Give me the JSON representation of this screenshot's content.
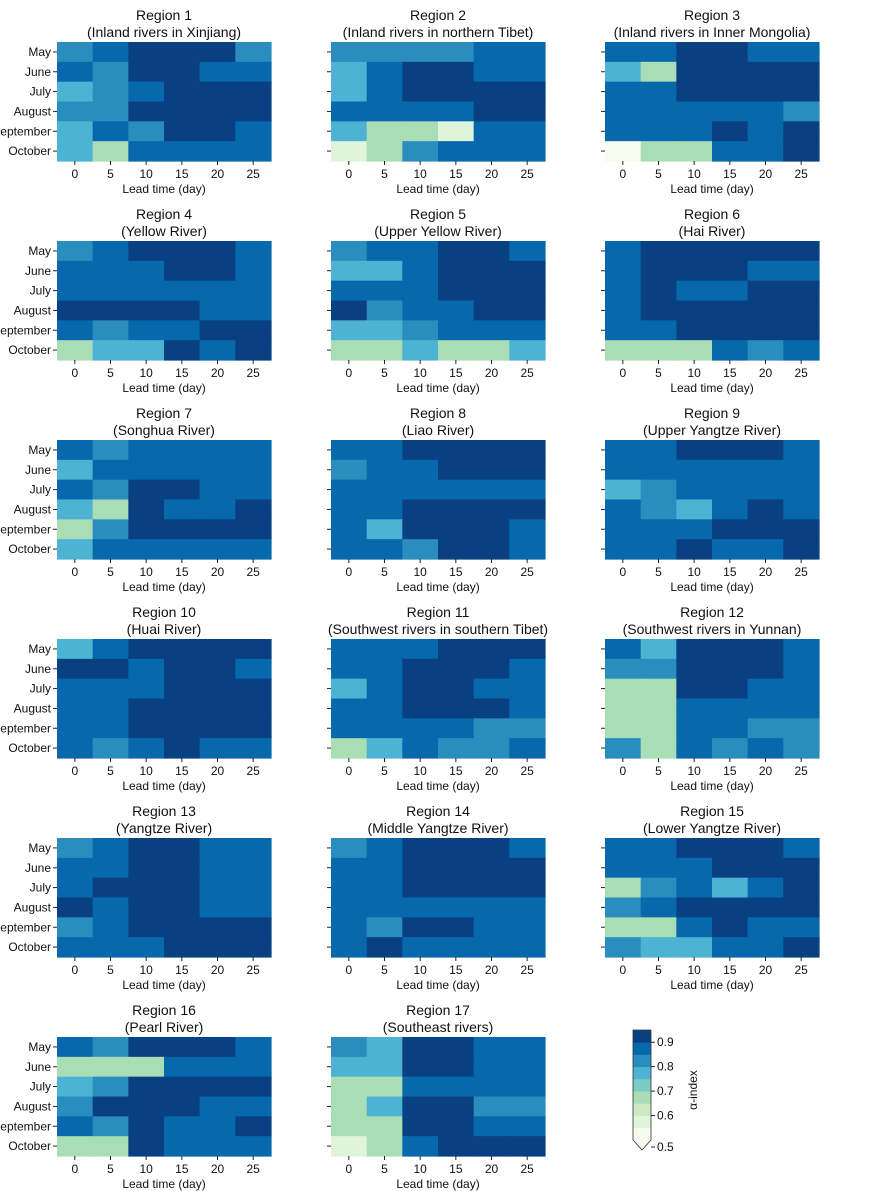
{
  "figure": {
    "colorbar": {
      "label": "α-index",
      "ticks": [
        0.5,
        0.6,
        0.7,
        0.8,
        0.9
      ],
      "range": [
        0.5,
        0.95
      ],
      "extend": "min",
      "colors": [
        "#f7fcf0",
        "#e0f3db",
        "#ccebc5",
        "#a8ddb5",
        "#7bccc4",
        "#4eb3d3",
        "#2b8cbe",
        "#0868ac",
        "#084081"
      ]
    }
  },
  "chart_data": {
    "type": "heatmap",
    "months": [
      "May",
      "June",
      "July",
      "August",
      "September",
      "October"
    ],
    "lead_times": [
      0,
      5,
      10,
      15,
      20,
      25
    ],
    "xlabel": "Lead time (day)",
    "panels": [
      {
        "title": "Region 1",
        "subtitle": "(Inland rivers in Xinjiang)",
        "values": [
          [
            0.8,
            0.85,
            0.9,
            0.93,
            0.93,
            0.8
          ],
          [
            0.88,
            0.8,
            0.93,
            0.93,
            0.88,
            0.85
          ],
          [
            0.75,
            0.8,
            0.85,
            0.93,
            0.93,
            0.93
          ],
          [
            0.8,
            0.8,
            0.93,
            0.93,
            0.93,
            0.93
          ],
          [
            0.75,
            0.85,
            0.8,
            0.93,
            0.93,
            0.88
          ],
          [
            0.75,
            0.65,
            0.85,
            0.88,
            0.85,
            0.85
          ]
        ]
      },
      {
        "title": "Region 2",
        "subtitle": "(Inland rivers in northern Tibet)",
        "values": [
          [
            0.8,
            0.8,
            0.8,
            0.8,
            0.88,
            0.85
          ],
          [
            0.75,
            0.88,
            0.93,
            0.93,
            0.85,
            0.85
          ],
          [
            0.75,
            0.88,
            0.93,
            0.93,
            0.93,
            0.93
          ],
          [
            0.85,
            0.88,
            0.88,
            0.88,
            0.93,
            0.93
          ],
          [
            0.75,
            0.7,
            0.65,
            0.6,
            0.85,
            0.85
          ],
          [
            0.6,
            0.7,
            0.8,
            0.85,
            0.85,
            0.85
          ]
        ]
      },
      {
        "title": "Region 3",
        "subtitle": "(Inland rivers in Inner Mongolia)",
        "values": [
          [
            0.85,
            0.85,
            0.93,
            0.93,
            0.88,
            0.88
          ],
          [
            0.75,
            0.7,
            0.93,
            0.93,
            0.93,
            0.93
          ],
          [
            0.85,
            0.85,
            0.93,
            0.93,
            0.93,
            0.93
          ],
          [
            0.85,
            0.85,
            0.85,
            0.88,
            0.85,
            0.8
          ],
          [
            0.85,
            0.85,
            0.85,
            0.93,
            0.88,
            0.93
          ],
          [
            0.5,
            0.7,
            0.7,
            0.85,
            0.88,
            0.93
          ]
        ]
      },
      {
        "title": "Region 4",
        "subtitle": "(Yellow River)",
        "values": [
          [
            0.8,
            0.85,
            0.93,
            0.93,
            0.93,
            0.88
          ],
          [
            0.88,
            0.88,
            0.88,
            0.93,
            0.93,
            0.85
          ],
          [
            0.88,
            0.88,
            0.85,
            0.88,
            0.88,
            0.88
          ],
          [
            0.93,
            0.93,
            0.93,
            0.93,
            0.88,
            0.85
          ],
          [
            0.85,
            0.8,
            0.85,
            0.88,
            0.93,
            0.93
          ],
          [
            0.65,
            0.75,
            0.75,
            0.93,
            0.88,
            0.93
          ]
        ]
      },
      {
        "title": "Region 5",
        "subtitle": "(Upper Yellow River)",
        "values": [
          [
            0.8,
            0.85,
            0.88,
            0.93,
            0.93,
            0.88
          ],
          [
            0.75,
            0.75,
            0.88,
            0.93,
            0.93,
            0.93
          ],
          [
            0.85,
            0.88,
            0.85,
            0.93,
            0.93,
            0.93
          ],
          [
            0.93,
            0.8,
            0.85,
            0.88,
            0.93,
            0.93
          ],
          [
            0.75,
            0.75,
            0.8,
            0.88,
            0.88,
            0.88
          ],
          [
            0.65,
            0.7,
            0.75,
            0.7,
            0.7,
            0.75
          ]
        ]
      },
      {
        "title": "Region 6",
        "subtitle": "(Hai River)",
        "values": [
          [
            0.85,
            0.93,
            0.93,
            0.93,
            0.93,
            0.93
          ],
          [
            0.88,
            0.93,
            0.93,
            0.93,
            0.88,
            0.88
          ],
          [
            0.85,
            0.93,
            0.88,
            0.88,
            0.93,
            0.93
          ],
          [
            0.88,
            0.93,
            0.93,
            0.93,
            0.93,
            0.93
          ],
          [
            0.88,
            0.88,
            0.93,
            0.93,
            0.93,
            0.93
          ],
          [
            0.7,
            0.7,
            0.7,
            0.85,
            0.8,
            0.88
          ]
        ]
      },
      {
        "title": "Region 7",
        "subtitle": "(Songhua River)",
        "values": [
          [
            0.88,
            0.8,
            0.85,
            0.85,
            0.85,
            0.88
          ],
          [
            0.75,
            0.88,
            0.88,
            0.88,
            0.88,
            0.88
          ],
          [
            0.85,
            0.8,
            0.93,
            0.93,
            0.88,
            0.88
          ],
          [
            0.75,
            0.7,
            0.93,
            0.88,
            0.88,
            0.93
          ],
          [
            0.7,
            0.8,
            0.93,
            0.93,
            0.93,
            0.93
          ],
          [
            0.75,
            0.85,
            0.88,
            0.88,
            0.85,
            0.88
          ]
        ]
      },
      {
        "title": "Region 8",
        "subtitle": "(Liao River)",
        "values": [
          [
            0.88,
            0.85,
            0.93,
            0.93,
            0.93,
            0.93
          ],
          [
            0.8,
            0.88,
            0.88,
            0.93,
            0.93,
            0.93
          ],
          [
            0.85,
            0.88,
            0.88,
            0.85,
            0.88,
            0.88
          ],
          [
            0.85,
            0.85,
            0.93,
            0.93,
            0.93,
            0.93
          ],
          [
            0.85,
            0.75,
            0.93,
            0.93,
            0.93,
            0.85
          ],
          [
            0.85,
            0.85,
            0.8,
            0.93,
            0.93,
            0.88
          ]
        ]
      },
      {
        "title": "Region 9",
        "subtitle": "(Upper Yangtze River)",
        "values": [
          [
            0.85,
            0.85,
            0.93,
            0.93,
            0.93,
            0.88
          ],
          [
            0.85,
            0.85,
            0.88,
            0.85,
            0.88,
            0.88
          ],
          [
            0.75,
            0.8,
            0.88,
            0.88,
            0.88,
            0.88
          ],
          [
            0.85,
            0.8,
            0.75,
            0.85,
            0.93,
            0.88
          ],
          [
            0.88,
            0.88,
            0.85,
            0.93,
            0.93,
            0.93
          ],
          [
            0.88,
            0.88,
            0.93,
            0.88,
            0.88,
            0.93
          ]
        ]
      },
      {
        "title": "Region 10",
        "subtitle": "(Huai River)",
        "values": [
          [
            0.75,
            0.85,
            0.93,
            0.93,
            0.93,
            0.93
          ],
          [
            0.93,
            0.93,
            0.88,
            0.93,
            0.93,
            0.88
          ],
          [
            0.88,
            0.88,
            0.88,
            0.93,
            0.93,
            0.93
          ],
          [
            0.85,
            0.88,
            0.93,
            0.93,
            0.93,
            0.93
          ],
          [
            0.85,
            0.85,
            0.93,
            0.93,
            0.93,
            0.93
          ],
          [
            0.85,
            0.8,
            0.85,
            0.93,
            0.85,
            0.88
          ]
        ]
      },
      {
        "title": "Region 11",
        "subtitle": "(Southwest rivers in southern Tibet)",
        "values": [
          [
            0.85,
            0.85,
            0.88,
            0.93,
            0.93,
            0.93
          ],
          [
            0.85,
            0.85,
            0.93,
            0.93,
            0.93,
            0.85
          ],
          [
            0.75,
            0.88,
            0.93,
            0.93,
            0.85,
            0.88
          ],
          [
            0.88,
            0.88,
            0.93,
            0.93,
            0.93,
            0.88
          ],
          [
            0.85,
            0.85,
            0.88,
            0.85,
            0.8,
            0.8
          ],
          [
            0.7,
            0.75,
            0.85,
            0.8,
            0.8,
            0.85
          ]
        ]
      },
      {
        "title": "Region 12",
        "subtitle": "(Southwest rivers in Yunnan)",
        "values": [
          [
            0.85,
            0.75,
            0.93,
            0.93,
            0.93,
            0.88
          ],
          [
            0.8,
            0.8,
            0.93,
            0.93,
            0.93,
            0.88
          ],
          [
            0.65,
            0.65,
            0.93,
            0.93,
            0.88,
            0.88
          ],
          [
            0.7,
            0.65,
            0.88,
            0.88,
            0.88,
            0.85
          ],
          [
            0.7,
            0.7,
            0.85,
            0.88,
            0.8,
            0.8
          ],
          [
            0.8,
            0.65,
            0.85,
            0.8,
            0.85,
            0.8
          ]
        ]
      },
      {
        "title": "Region 13",
        "subtitle": "(Yangtze River)",
        "values": [
          [
            0.8,
            0.85,
            0.93,
            0.93,
            0.88,
            0.88
          ],
          [
            0.85,
            0.88,
            0.93,
            0.93,
            0.88,
            0.88
          ],
          [
            0.88,
            0.93,
            0.93,
            0.93,
            0.88,
            0.88
          ],
          [
            0.93,
            0.85,
            0.93,
            0.93,
            0.88,
            0.88
          ],
          [
            0.8,
            0.85,
            0.93,
            0.93,
            0.93,
            0.93
          ],
          [
            0.85,
            0.88,
            0.88,
            0.93,
            0.93,
            0.93
          ]
        ]
      },
      {
        "title": "Region 14",
        "subtitle": "(Middle Yangtze River)",
        "values": [
          [
            0.8,
            0.88,
            0.93,
            0.93,
            0.93,
            0.88
          ],
          [
            0.85,
            0.85,
            0.93,
            0.93,
            0.93,
            0.93
          ],
          [
            0.85,
            0.85,
            0.93,
            0.93,
            0.93,
            0.93
          ],
          [
            0.85,
            0.85,
            0.88,
            0.88,
            0.85,
            0.88
          ],
          [
            0.85,
            0.8,
            0.93,
            0.93,
            0.88,
            0.88
          ],
          [
            0.88,
            0.93,
            0.88,
            0.88,
            0.88,
            0.88
          ]
        ]
      },
      {
        "title": "Region 15",
        "subtitle": "(Lower Yangtze River)",
        "values": [
          [
            0.85,
            0.85,
            0.93,
            0.93,
            0.93,
            0.88
          ],
          [
            0.88,
            0.88,
            0.88,
            0.93,
            0.93,
            0.93
          ],
          [
            0.7,
            0.8,
            0.85,
            0.75,
            0.88,
            0.93
          ],
          [
            0.8,
            0.88,
            0.93,
            0.93,
            0.93,
            0.93
          ],
          [
            0.7,
            0.7,
            0.88,
            0.93,
            0.88,
            0.85
          ],
          [
            0.8,
            0.75,
            0.75,
            0.88,
            0.88,
            0.93
          ]
        ]
      },
      {
        "title": "Region 16",
        "subtitle": "(Pearl River)",
        "values": [
          [
            0.88,
            0.8,
            0.93,
            0.93,
            0.93,
            0.85
          ],
          [
            0.65,
            0.7,
            0.7,
            0.88,
            0.88,
            0.85
          ],
          [
            0.75,
            0.8,
            0.93,
            0.93,
            0.93,
            0.93
          ],
          [
            0.8,
            0.93,
            0.93,
            0.93,
            0.88,
            0.88
          ],
          [
            0.85,
            0.8,
            0.93,
            0.88,
            0.88,
            0.93
          ],
          [
            0.7,
            0.65,
            0.93,
            0.88,
            0.85,
            0.85
          ]
        ]
      },
      {
        "title": "Region 17",
        "subtitle": "(Southeast rivers)",
        "values": [
          [
            0.8,
            0.75,
            0.93,
            0.93,
            0.88,
            0.85
          ],
          [
            0.75,
            0.75,
            0.93,
            0.93,
            0.88,
            0.85
          ],
          [
            0.7,
            0.7,
            0.88,
            0.88,
            0.88,
            0.88
          ],
          [
            0.7,
            0.75,
            0.93,
            0.93,
            0.8,
            0.8
          ],
          [
            0.7,
            0.7,
            0.93,
            0.93,
            0.88,
            0.88
          ],
          [
            0.6,
            0.7,
            0.88,
            0.93,
            0.93,
            0.93
          ]
        ]
      }
    ]
  }
}
